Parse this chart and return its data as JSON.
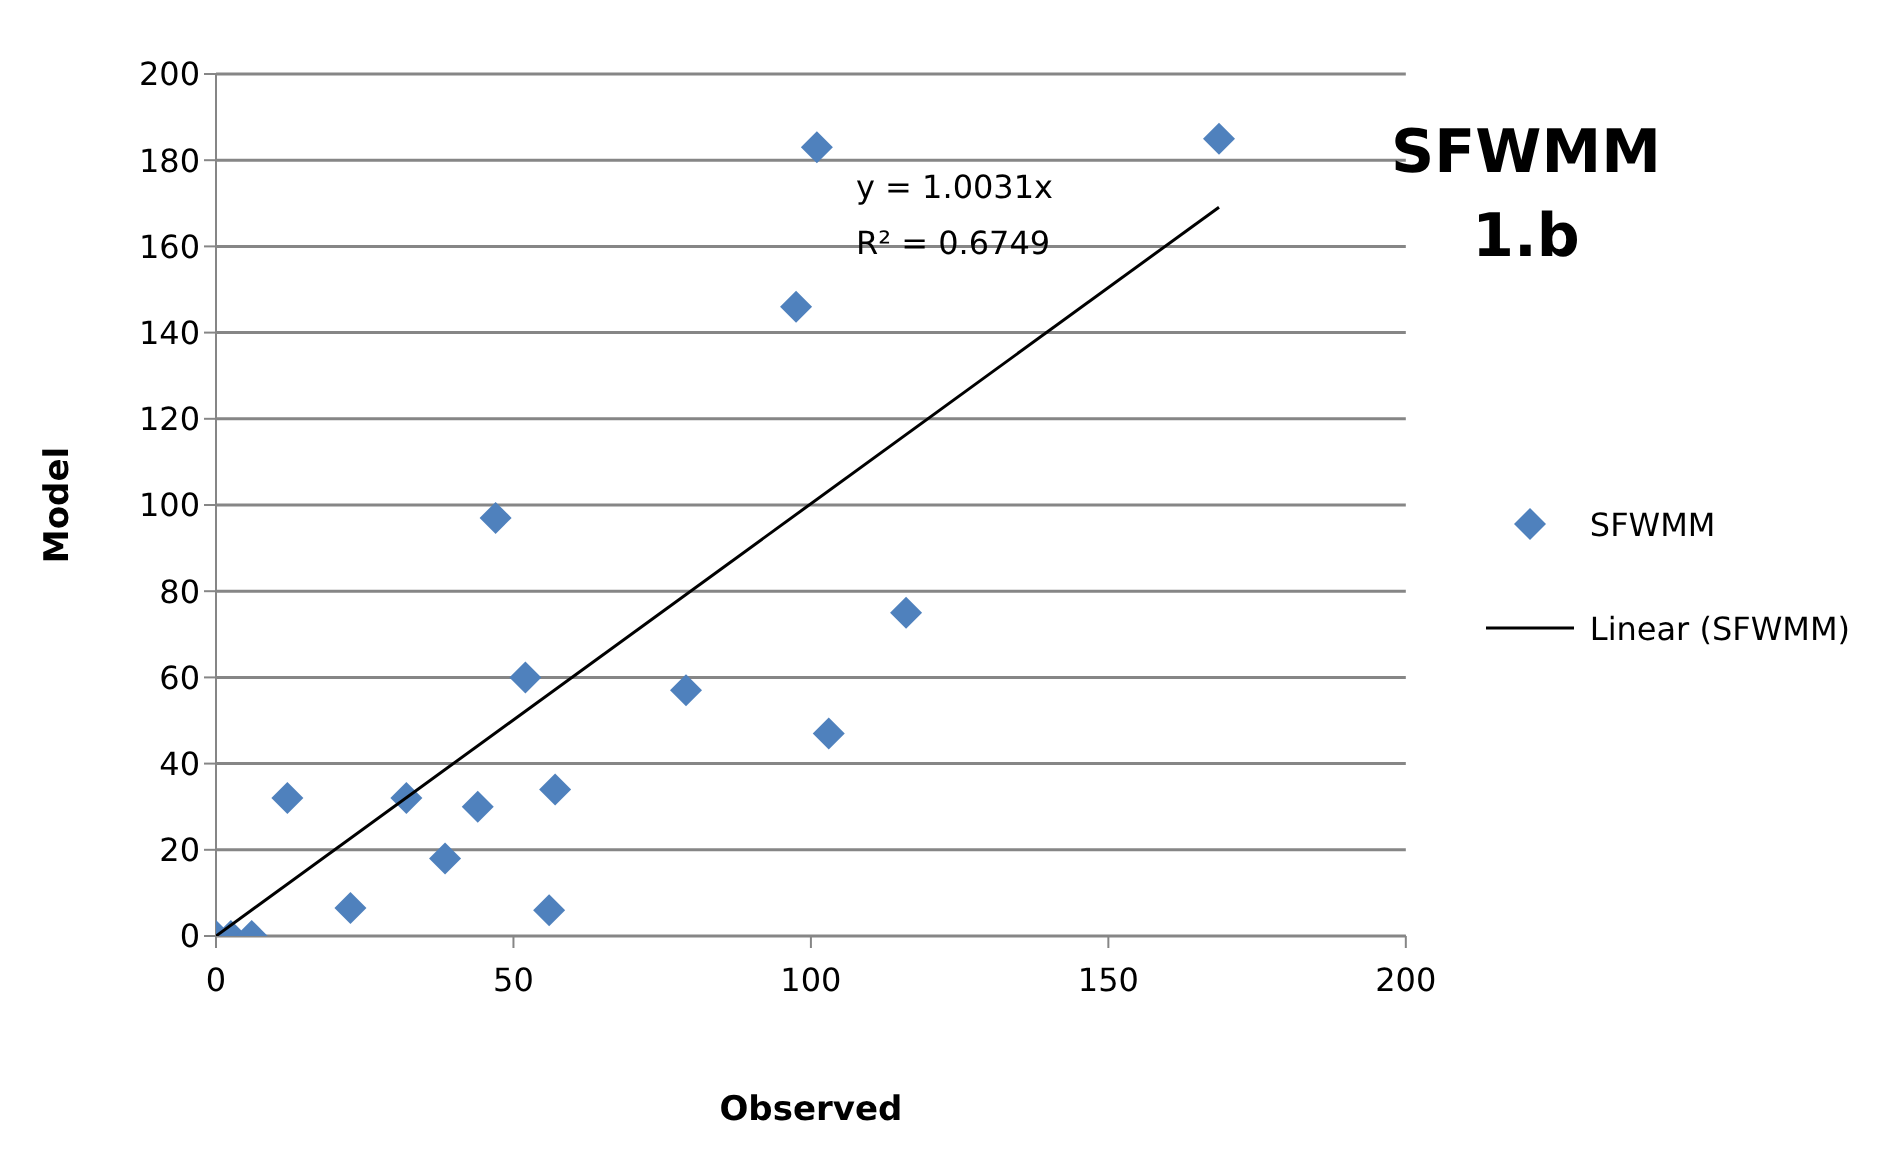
{
  "chart_data": {
    "type": "scatter",
    "title": "SFWMM 1.b",
    "xlabel": "Observed",
    "ylabel": "Model",
    "xlim": [
      0,
      200
    ],
    "xticks": [
      0,
      50,
      100,
      150,
      200
    ],
    "ylim": [
      0,
      200
    ],
    "yticks": [
      0,
      20,
      40,
      60,
      80,
      100,
      120,
      140,
      160,
      180,
      200
    ],
    "grid": "y",
    "legend": "right",
    "annotations": [
      "y = 1.0031x",
      "R² = 0.6749"
    ],
    "series": [
      {
        "name": "SFWMM",
        "marker": "diamond",
        "color": "#4f81bd",
        "x": [
          0,
          2.5,
          6,
          12,
          22.6,
          32,
          38.5,
          44,
          47,
          52,
          56,
          57,
          79,
          97.5,
          101,
          103,
          116,
          168.6
        ],
        "values": [
          0,
          0,
          0,
          32,
          6.5,
          32,
          18,
          30,
          97,
          60,
          6,
          34,
          57,
          146,
          183,
          47,
          75,
          185
        ]
      },
      {
        "name": "Linear (SFWMM)",
        "type": "line",
        "marker": "none",
        "color": "#000000",
        "line_style": "solid",
        "x": [
          0,
          168.6
        ],
        "values": [
          0,
          169.1
        ]
      }
    ]
  }
}
